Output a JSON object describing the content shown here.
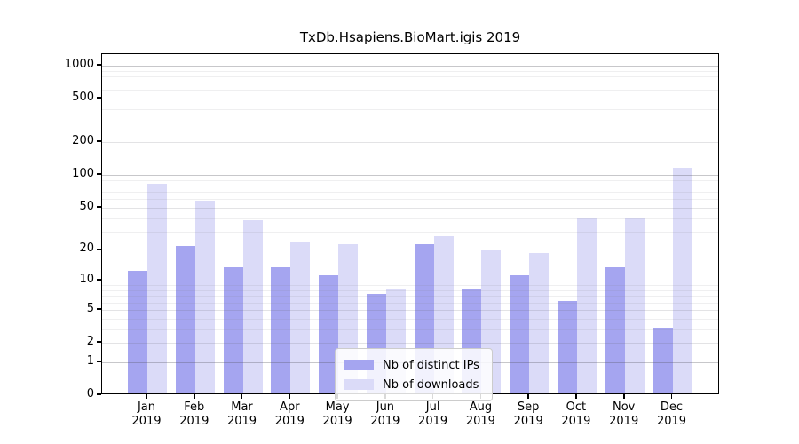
{
  "chart_data": {
    "type": "bar",
    "title": "TxDb.Hsapiens.BioMart.igis 2019",
    "categories": [
      "Jan",
      "Feb",
      "Mar",
      "Apr",
      "May",
      "Jun",
      "Jul",
      "Aug",
      "Sep",
      "Oct",
      "Nov",
      "Dec"
    ],
    "year": "2019",
    "series": [
      {
        "name": "Nb of distinct IPs",
        "color": "#a5a5f0",
        "values": [
          12,
          21,
          13,
          13,
          11,
          7,
          22,
          8,
          11,
          6,
          13,
          3
        ]
      },
      {
        "name": "Nb of downloads",
        "color": "#dbdbf8",
        "values": [
          80,
          56,
          37,
          23,
          22,
          8,
          26,
          19,
          18,
          39,
          39,
          112
        ]
      }
    ],
    "xlabel": "",
    "ylabel": "",
    "y_scale": "log10(value+1)",
    "y_ticks": [
      0,
      1,
      2,
      5,
      10,
      20,
      50,
      100,
      200,
      500,
      1000
    ],
    "y_major_grid_ticks": [
      1,
      10,
      100,
      1000
    ],
    "y_minor_grid_ticks": [
      3,
      4,
      6,
      7,
      8,
      9,
      30,
      40,
      60,
      70,
      80,
      90,
      300,
      400,
      600,
      700,
      800,
      900
    ],
    "ylim": [
      0,
      1270
    ],
    "grid": "horizontal major and minor, drawn over bars",
    "legend_position": "inside bottom-center"
  }
}
